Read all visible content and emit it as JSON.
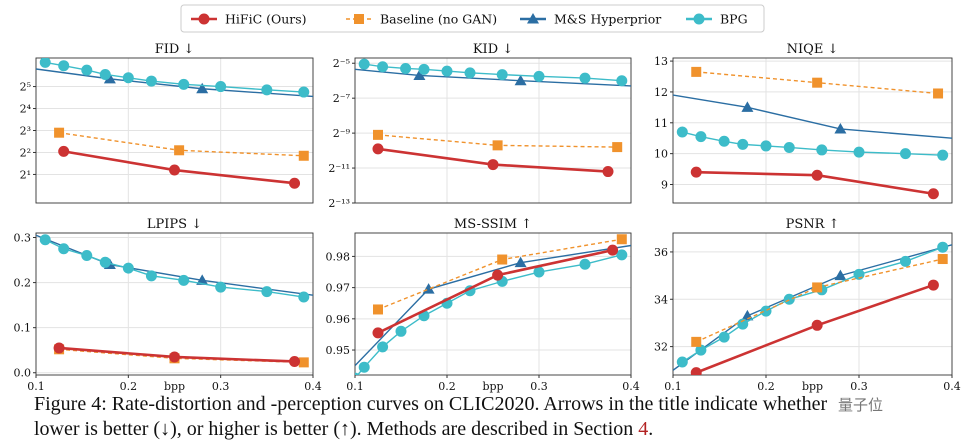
{
  "legend": {
    "items": [
      {
        "label": "HiFiC (Ours)",
        "color": "#cc3333",
        "marker": "circle",
        "dash": false
      },
      {
        "label": "Baseline (no GAN)",
        "color": "#f0922c",
        "marker": "square",
        "dash": true
      },
      {
        "label": "M&S Hyperprior",
        "color": "#2b6ea3",
        "marker": "triangle",
        "dash": false
      },
      {
        "label": "BPG",
        "color": "#3dbcc9",
        "marker": "circle",
        "dash": false
      }
    ]
  },
  "chart_data": [
    {
      "type": "line",
      "title": "FID ↓",
      "xlabel": "",
      "ylabel": "",
      "xlim": [
        0.1,
        0.4
      ],
      "ylim": [
        -0.3,
        6.3
      ],
      "yscale": "log2",
      "yticks": [
        {
          "v": 1,
          "label": "2¹"
        },
        {
          "v": 2,
          "label": "2²"
        },
        {
          "v": 3,
          "label": "2³"
        },
        {
          "v": 4,
          "label": "2⁴"
        },
        {
          "v": 5,
          "label": "2⁵"
        }
      ],
      "xticks": [],
      "grid": true,
      "series": [
        {
          "key": "hific",
          "x": [
            0.13,
            0.25,
            0.38
          ],
          "y": [
            2.05,
            1.2,
            0.6
          ]
        },
        {
          "key": "baseline",
          "x": [
            0.125,
            0.255,
            0.39
          ],
          "y": [
            2.9,
            2.1,
            1.85
          ]
        },
        {
          "key": "ms",
          "x": [
            0.1,
            0.18,
            0.28,
            0.4
          ],
          "y": [
            5.8,
            5.35,
            4.9,
            4.55
          ],
          "markers": [
            1,
            2
          ]
        },
        {
          "key": "bpg",
          "x": [
            0.11,
            0.13,
            0.155,
            0.175,
            0.2,
            0.225,
            0.26,
            0.3,
            0.35,
            0.39
          ],
          "y": [
            6.1,
            5.95,
            5.75,
            5.55,
            5.4,
            5.25,
            5.1,
            5.0,
            4.85,
            4.75
          ]
        }
      ]
    },
    {
      "type": "line",
      "title": "KID ↓",
      "xlabel": "",
      "ylabel": "",
      "xlim": [
        0.1,
        0.4
      ],
      "ylim": [
        -13.0,
        -4.7
      ],
      "yscale": "log2",
      "yticks": [
        {
          "v": -5,
          "label": "2⁻⁵"
        },
        {
          "v": -7,
          "label": "2⁻⁷"
        },
        {
          "v": -9,
          "label": "2⁻⁹"
        },
        {
          "v": -11,
          "label": "2⁻¹¹"
        },
        {
          "v": -13,
          "label": "2⁻¹³"
        }
      ],
      "xticks": [],
      "grid": true,
      "series": [
        {
          "key": "hific",
          "x": [
            0.125,
            0.25,
            0.375
          ],
          "y": [
            -9.9,
            -10.8,
            -11.2
          ]
        },
        {
          "key": "baseline",
          "x": [
            0.125,
            0.255,
            0.385
          ],
          "y": [
            -9.1,
            -9.7,
            -9.8
          ]
        },
        {
          "key": "ms",
          "x": [
            0.1,
            0.17,
            0.28,
            0.4
          ],
          "y": [
            -5.35,
            -5.7,
            -6.0,
            -6.3
          ],
          "markers": [
            1,
            2
          ]
        },
        {
          "key": "bpg",
          "x": [
            0.11,
            0.13,
            0.155,
            0.175,
            0.2,
            0.225,
            0.26,
            0.3,
            0.35,
            0.39
          ],
          "y": [
            -5.05,
            -5.2,
            -5.3,
            -5.35,
            -5.45,
            -5.55,
            -5.65,
            -5.75,
            -5.85,
            -6.0
          ]
        }
      ]
    },
    {
      "type": "line",
      "title": "NIQE ↓",
      "xlabel": "",
      "ylabel": "",
      "xlim": [
        0.1,
        0.4
      ],
      "ylim": [
        8.4,
        13.1
      ],
      "yscale": "linear",
      "yticks": [
        {
          "v": 9,
          "label": "9"
        },
        {
          "v": 10,
          "label": "10"
        },
        {
          "v": 11,
          "label": "11"
        },
        {
          "v": 12,
          "label": "12"
        },
        {
          "v": 13,
          "label": "13"
        }
      ],
      "xticks": [],
      "grid": true,
      "series": [
        {
          "key": "hific",
          "x": [
            0.125,
            0.255,
            0.38
          ],
          "y": [
            9.4,
            9.3,
            8.7
          ]
        },
        {
          "key": "baseline",
          "x": [
            0.125,
            0.255,
            0.385
          ],
          "y": [
            12.65,
            12.3,
            11.95
          ]
        },
        {
          "key": "ms",
          "x": [
            0.1,
            0.18,
            0.28,
            0.4
          ],
          "y": [
            11.9,
            11.5,
            10.8,
            10.5
          ],
          "markers": [
            1,
            2
          ]
        },
        {
          "key": "bpg",
          "x": [
            0.11,
            0.13,
            0.155,
            0.175,
            0.2,
            0.225,
            0.26,
            0.3,
            0.35,
            0.39
          ],
          "y": [
            10.7,
            10.55,
            10.4,
            10.3,
            10.25,
            10.2,
            10.12,
            10.05,
            10.0,
            9.95
          ]
        }
      ]
    },
    {
      "type": "line",
      "title": "LPIPS ↓",
      "xlabel": "",
      "ylabel": "",
      "xlim": [
        0.1,
        0.4
      ],
      "ylim": [
        -0.005,
        0.31
      ],
      "yscale": "linear",
      "yticks": [
        {
          "v": 0.0,
          "label": "0.0"
        },
        {
          "v": 0.1,
          "label": "0.1"
        },
        {
          "v": 0.2,
          "label": "0.2"
        },
        {
          "v": 0.3,
          "label": "0.3"
        }
      ],
      "xticks": [
        {
          "v": 0.1,
          "label": "0.1"
        },
        {
          "v": 0.2,
          "label": "0.2"
        },
        {
          "v": 0.3,
          "label": "0.3"
        },
        {
          "v": 0.4,
          "label": "0.4"
        }
      ],
      "xlabel_mid": "bpp",
      "grid": true,
      "series": [
        {
          "key": "hific",
          "x": [
            0.125,
            0.25,
            0.38
          ],
          "y": [
            0.055,
            0.035,
            0.025
          ]
        },
        {
          "key": "baseline",
          "x": [
            0.125,
            0.25,
            0.39
          ],
          "y": [
            0.052,
            0.032,
            0.023
          ]
        },
        {
          "key": "ms",
          "x": [
            0.1,
            0.18,
            0.28,
            0.4
          ],
          "y": [
            0.305,
            0.24,
            0.205,
            0.172
          ],
          "markers": [
            1,
            2
          ]
        },
        {
          "key": "bpg",
          "x": [
            0.11,
            0.13,
            0.155,
            0.175,
            0.2,
            0.225,
            0.26,
            0.3,
            0.35,
            0.39
          ],
          "y": [
            0.295,
            0.275,
            0.26,
            0.245,
            0.232,
            0.215,
            0.205,
            0.19,
            0.18,
            0.168
          ]
        }
      ]
    },
    {
      "type": "line",
      "title": "MS-SSIM ↑",
      "xlabel": "",
      "ylabel": "",
      "xlim": [
        0.1,
        0.4
      ],
      "ylim": [
        0.942,
        0.9875
      ],
      "yscale": "linear",
      "yticks": [
        {
          "v": 0.95,
          "label": "0.95"
        },
        {
          "v": 0.96,
          "label": "0.96"
        },
        {
          "v": 0.97,
          "label": "0.97"
        },
        {
          "v": 0.98,
          "label": "0.98"
        }
      ],
      "xticks": [
        {
          "v": 0.1,
          "label": "0.1"
        },
        {
          "v": 0.2,
          "label": "0.2"
        },
        {
          "v": 0.3,
          "label": "0.3"
        },
        {
          "v": 0.4,
          "label": "0.4"
        }
      ],
      "xlabel_mid": "bpp",
      "grid": true,
      "series": [
        {
          "key": "hific",
          "x": [
            0.125,
            0.255,
            0.38
          ],
          "y": [
            0.9555,
            0.974,
            0.982
          ]
        },
        {
          "key": "baseline",
          "x": [
            0.125,
            0.26,
            0.39
          ],
          "y": [
            0.963,
            0.979,
            0.9855
          ]
        },
        {
          "key": "ms",
          "x": [
            0.1,
            0.18,
            0.28,
            0.4
          ],
          "y": [
            0.945,
            0.9695,
            0.978,
            0.9835
          ],
          "markers": [
            1,
            2
          ]
        },
        {
          "key": "bpg",
          "x": [
            0.1,
            0.11,
            0.13,
            0.15,
            0.175,
            0.2,
            0.225,
            0.26,
            0.3,
            0.35,
            0.39
          ],
          "y": [
            0.941,
            0.9445,
            0.951,
            0.956,
            0.961,
            0.965,
            0.969,
            0.972,
            0.975,
            0.9775,
            0.9805
          ]
        }
      ]
    },
    {
      "type": "line",
      "title": "PSNR ↑",
      "xlabel": "",
      "ylabel": "",
      "xlim": [
        0.1,
        0.4
      ],
      "ylim": [
        30.8,
        36.8
      ],
      "yscale": "linear",
      "yticks": [
        {
          "v": 32,
          "label": "32"
        },
        {
          "v": 34,
          "label": "34"
        },
        {
          "v": 36,
          "label": "36"
        }
      ],
      "xticks": [
        {
          "v": 0.1,
          "label": "0.1"
        },
        {
          "v": 0.2,
          "label": "0.2"
        },
        {
          "v": 0.3,
          "label": "0.3"
        },
        {
          "v": 0.4,
          "label": "0.4"
        }
      ],
      "xlabel_mid": "bpp",
      "grid": true,
      "series": [
        {
          "key": "hific",
          "x": [
            0.125,
            0.255,
            0.38
          ],
          "y": [
            30.9,
            32.9,
            34.6
          ]
        },
        {
          "key": "baseline",
          "x": [
            0.125,
            0.255,
            0.39
          ],
          "y": [
            32.2,
            34.5,
            35.7
          ]
        },
        {
          "key": "ms",
          "x": [
            0.1,
            0.18,
            0.28,
            0.4
          ],
          "y": [
            31.0,
            33.3,
            35.0,
            36.3
          ],
          "markers": [
            1,
            2
          ]
        },
        {
          "key": "bpg",
          "x": [
            0.11,
            0.13,
            0.155,
            0.175,
            0.2,
            0.225,
            0.26,
            0.3,
            0.35,
            0.39
          ],
          "y": [
            31.35,
            31.85,
            32.4,
            32.95,
            33.5,
            34.0,
            34.4,
            35.05,
            35.6,
            36.2
          ]
        }
      ]
    }
  ],
  "caption": {
    "line1": "Figure 4: Rate-distortion and -perception curves on CLIC2020. Arrows in the title indicate whether",
    "line2a": "lower is better (↓), or higher is better (↑). Methods are described in Section ",
    "ref": "4",
    "line2b": "."
  },
  "watermark": "量子位"
}
